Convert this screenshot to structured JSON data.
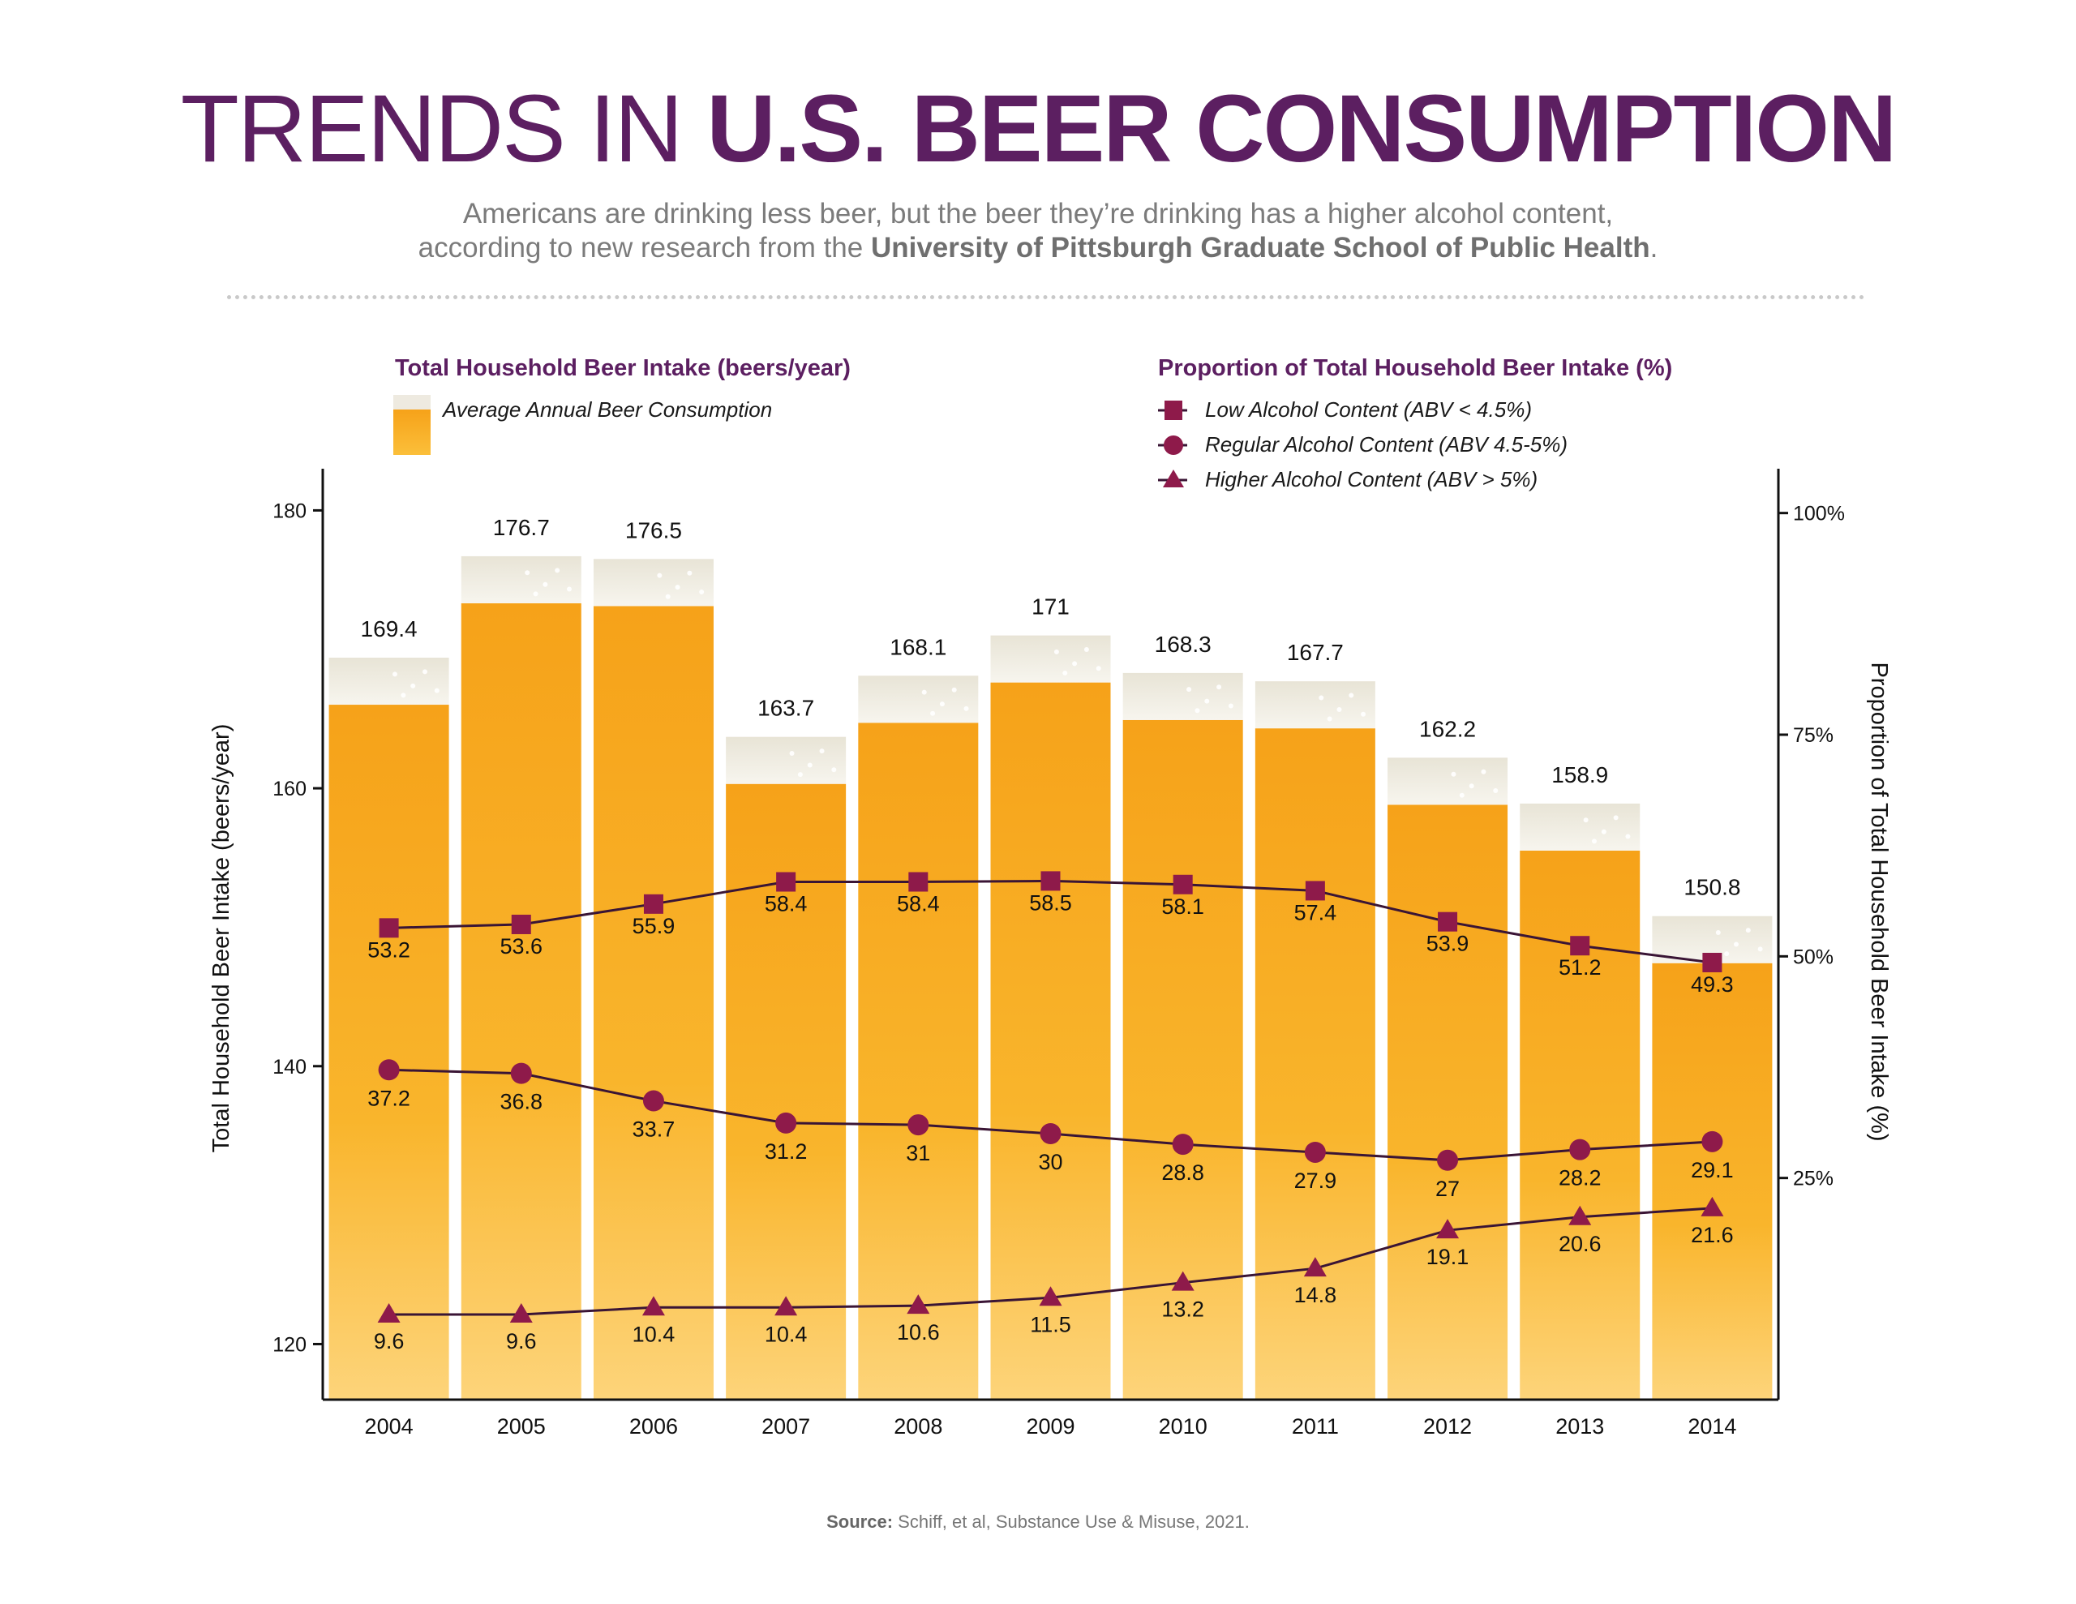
{
  "header": {
    "title_light": "TRENDS IN ",
    "title_bold": "U.S. BEER CONSUMPTION",
    "subtitle_line1": "Americans are drinking less beer, but the beer they’re drinking has a higher alcohol content,",
    "subtitle_line2_prefix": "according to new research from the ",
    "subtitle_line2_strong": "University of Pittsburgh Graduate School of Public Health",
    "subtitle_line2_suffix": "."
  },
  "legend": {
    "left_heading": "Total Household Beer Intake (beers/year)",
    "bar_entry": "Average Annual Beer Consumption",
    "right_heading": "Proportion of Total Household Beer Intake (%)",
    "low_entry": "Low Alcohol Content (ABV < 4.5%)",
    "regular_entry": "Regular Alcohol Content (ABV 4.5-5%)",
    "higher_entry": "Higher Alcohol Content (ABV > 5%)"
  },
  "source": {
    "label": "Source:",
    "text": " Schiff, et al, Substance Use & Misuse, 2021."
  },
  "colors": {
    "title": "#5c1f61",
    "marker": "#8e1a4a",
    "line": "#3a1535",
    "bar_top": "#f6a219",
    "bar_bottom": "#fdd47a",
    "foam": "#eeeae0",
    "axis": "#111111"
  },
  "chart_data": {
    "type": "bar",
    "categories": [
      "2004",
      "2005",
      "2006",
      "2007",
      "2008",
      "2009",
      "2010",
      "2011",
      "2012",
      "2013",
      "2014"
    ],
    "ylabel": "Total Household Beer Intake (beers/year)",
    "ylabel_right": "Proportion of Total Household Beer Intake (%)",
    "ylim": [
      116,
      183
    ],
    "yticks": [
      120,
      140,
      160,
      180
    ],
    "ylim_right": [
      0,
      105
    ],
    "yticks_right": [
      {
        "value": 25,
        "label": "25%"
      },
      {
        "value": 50,
        "label": "50%"
      },
      {
        "value": 75,
        "label": "75%"
      },
      {
        "value": 100,
        "label": "100%"
      }
    ],
    "bars": {
      "name": "Average Annual Beer Consumption",
      "values": [
        169.4,
        176.7,
        176.5,
        163.7,
        168.1,
        171,
        168.3,
        167.7,
        162.2,
        158.9,
        150.8
      ],
      "labels": [
        "169.4",
        "176.7",
        "176.5",
        "163.7",
        "168.1",
        "171",
        "168.3",
        "167.7",
        "162.2",
        "158.9",
        "150.8"
      ]
    },
    "series": [
      {
        "name": "Low Alcohol Content (ABV < 4.5%)",
        "marker": "square",
        "axis": "right",
        "values": [
          53.2,
          53.6,
          55.9,
          58.4,
          58.4,
          58.5,
          58.1,
          57.4,
          53.9,
          51.2,
          49.3
        ],
        "labels": [
          "53.2",
          "53.6",
          "55.9",
          "58.4",
          "58.4",
          "58.5",
          "58.1",
          "57.4",
          "53.9",
          "51.2",
          "49.3"
        ]
      },
      {
        "name": "Regular Alcohol Content (ABV 4.5-5%)",
        "marker": "circle",
        "axis": "right",
        "values": [
          37.2,
          36.8,
          33.7,
          31.2,
          31,
          30,
          28.8,
          27.9,
          27,
          28.2,
          29.1
        ],
        "labels": [
          "37.2",
          "36.8",
          "33.7",
          "31.2",
          "31",
          "30",
          "28.8",
          "27.9",
          "27",
          "28.2",
          "29.1"
        ]
      },
      {
        "name": "Higher Alcohol Content (ABV > 5%)",
        "marker": "triangle",
        "axis": "right",
        "values": [
          9.6,
          9.6,
          10.4,
          10.4,
          10.6,
          11.5,
          13.2,
          14.8,
          19.1,
          20.6,
          21.6
        ],
        "labels": [
          "9.6",
          "9.6",
          "10.4",
          "10.4",
          "10.6",
          "11.5",
          "13.2",
          "14.8",
          "19.1",
          "20.6",
          "21.6"
        ]
      }
    ],
    "legend": "top"
  }
}
